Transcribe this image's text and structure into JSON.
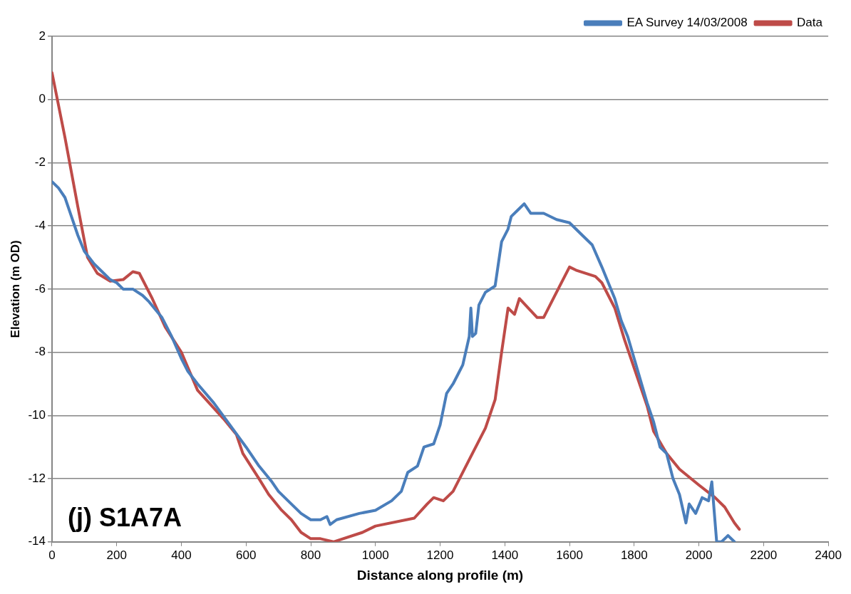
{
  "chart_data": {
    "type": "line",
    "xlabel": "Distance along profile (m)",
    "ylabel": "Elevation (m OD)",
    "xlim": [
      0,
      2400
    ],
    "xticks": [
      0,
      200,
      400,
      600,
      800,
      1000,
      1200,
      1400,
      1600,
      1800,
      2000,
      2200,
      2400
    ],
    "ylim": [
      -14,
      2
    ],
    "yticks": [
      -14,
      -12,
      -10,
      -8,
      -6,
      -4,
      -2,
      0,
      2
    ],
    "grid": "y",
    "legend": "top right",
    "marker": "none",
    "line_style": "solid",
    "annotations": [
      "(j) S1A7A"
    ],
    "series": [
      {
        "name": "EA Survey 14/03/2008",
        "color": "#4a7ebb",
        "x": [
          0,
          20,
          40,
          60,
          80,
          100,
          130,
          160,
          180,
          200,
          220,
          250,
          280,
          300,
          340,
          370,
          400,
          420,
          450,
          500,
          550,
          600,
          640,
          680,
          700,
          740,
          770,
          800,
          830,
          850,
          860,
          880,
          950,
          1000,
          1050,
          1080,
          1100,
          1130,
          1150,
          1180,
          1200,
          1220,
          1240,
          1260,
          1270,
          1290,
          1295,
          1300,
          1310,
          1320,
          1340,
          1370,
          1380,
          1390,
          1410,
          1420,
          1440,
          1460,
          1480,
          1500,
          1520,
          1560,
          1600,
          1640,
          1670,
          1700,
          1720,
          1740,
          1760,
          1780,
          1800,
          1820,
          1840,
          1860,
          1880,
          1900,
          1920,
          1940,
          1960,
          1970,
          1990,
          2010,
          2030,
          2040,
          2055,
          2070,
          2090,
          2110
        ],
        "values": [
          -2.6,
          -2.8,
          -3.1,
          -3.7,
          -4.3,
          -4.8,
          -5.2,
          -5.5,
          -5.7,
          -5.8,
          -6.0,
          -6.0,
          -6.2,
          -6.4,
          -6.9,
          -7.5,
          -8.2,
          -8.6,
          -9.0,
          -9.6,
          -10.3,
          -11.0,
          -11.6,
          -12.1,
          -12.4,
          -12.8,
          -13.1,
          -13.3,
          -13.3,
          -13.2,
          -13.45,
          -13.3,
          -13.1,
          -13.0,
          -12.7,
          -12.4,
          -11.8,
          -11.6,
          -11.0,
          -10.9,
          -10.3,
          -9.3,
          -9.0,
          -8.6,
          -8.4,
          -7.5,
          -6.6,
          -7.5,
          -7.4,
          -6.5,
          -6.1,
          -5.9,
          -5.2,
          -4.5,
          -4.1,
          -3.7,
          -3.5,
          -3.3,
          -3.6,
          -3.6,
          -3.6,
          -3.8,
          -3.9,
          -4.3,
          -4.6,
          -5.3,
          -5.8,
          -6.3,
          -7.0,
          -7.5,
          -8.2,
          -8.9,
          -9.6,
          -10.2,
          -11.0,
          -11.2,
          -12.0,
          -12.5,
          -13.4,
          -12.8,
          -13.1,
          -12.6,
          -12.7,
          -12.1,
          -14.0,
          -14.0,
          -13.8,
          -14.0
        ]
      },
      {
        "name": "Data",
        "color": "#be4b48",
        "x": [
          0,
          40,
          80,
          110,
          140,
          180,
          220,
          250,
          270,
          310,
          350,
          400,
          450,
          530,
          570,
          590,
          640,
          670,
          710,
          740,
          770,
          800,
          830,
          870,
          960,
          1000,
          1120,
          1160,
          1180,
          1210,
          1240,
          1290,
          1340,
          1370,
          1390,
          1410,
          1430,
          1445,
          1500,
          1520,
          1550,
          1570,
          1600,
          1620,
          1680,
          1700,
          1740,
          1770,
          1800,
          1840,
          1860,
          1900,
          1940,
          2000,
          2050,
          2080,
          2110,
          2125
        ],
        "values": [
          0.85,
          -1.2,
          -3.4,
          -5.0,
          -5.5,
          -5.75,
          -5.7,
          -5.45,
          -5.5,
          -6.3,
          -7.2,
          -8.0,
          -9.2,
          -10.1,
          -10.6,
          -11.2,
          -12.0,
          -12.5,
          -13.0,
          -13.3,
          -13.7,
          -13.9,
          -13.9,
          -14.0,
          -13.7,
          -13.5,
          -13.25,
          -12.8,
          -12.6,
          -12.7,
          -12.4,
          -11.4,
          -10.4,
          -9.5,
          -8.0,
          -6.6,
          -6.8,
          -6.3,
          -6.9,
          -6.9,
          -6.3,
          -5.9,
          -5.3,
          -5.4,
          -5.6,
          -5.8,
          -6.6,
          -7.6,
          -8.5,
          -9.7,
          -10.5,
          -11.2,
          -11.7,
          -12.2,
          -12.6,
          -12.9,
          -13.4,
          -13.6
        ]
      }
    ]
  }
}
